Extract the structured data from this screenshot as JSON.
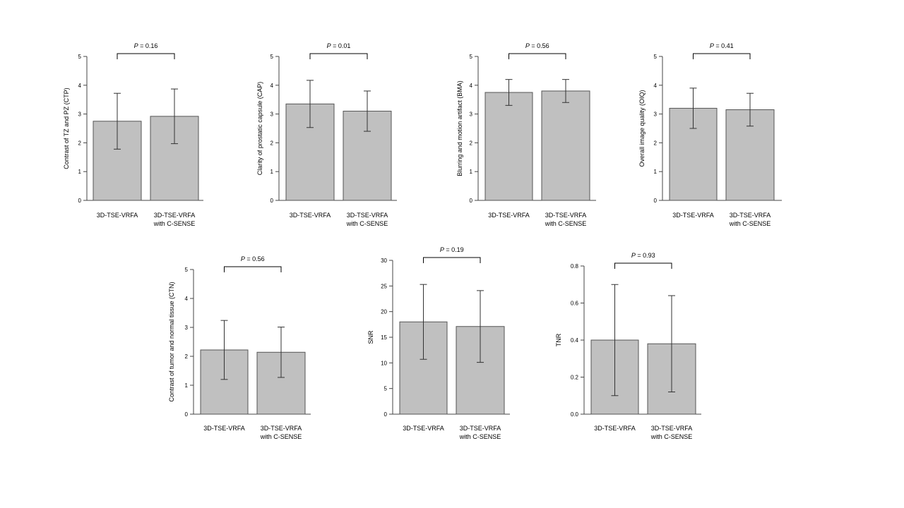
{
  "colors": {
    "bar": "#c0c0c0",
    "bar_stroke": "#555555",
    "axis": "#444444",
    "error": "#333333"
  },
  "chart_data": [
    {
      "type": "bar",
      "categories": [
        "3D-TSE-VRFA",
        "3D-TSE-VRFA|with C-SENSE"
      ],
      "values": [
        2.75,
        2.92
      ],
      "error": [
        0.97,
        0.95
      ],
      "ylabel": "Contrast of TZ and PZ (CTP)",
      "ylim": [
        0,
        5
      ],
      "yticks": [
        0,
        1,
        2,
        3,
        4,
        5
      ],
      "p_label": "P",
      "p_value": "= 0.16"
    },
    {
      "type": "bar",
      "categories": [
        "3D-TSE-VRFA",
        "3D-TSE-VRFA|with C-SENSE"
      ],
      "values": [
        3.35,
        3.1
      ],
      "error": [
        0.82,
        0.7
      ],
      "ylabel": "Clarity of prostatic capsule (CAP)",
      "ylim": [
        0,
        5
      ],
      "yticks": [
        0,
        1,
        2,
        3,
        4,
        5
      ],
      "p_label": "P",
      "p_value": "= 0.01"
    },
    {
      "type": "bar",
      "categories": [
        "3D-TSE-VRFA",
        "3D-TSE-VRFA|with C-SENSE"
      ],
      "values": [
        3.75,
        3.8
      ],
      "error": [
        0.45,
        0.4
      ],
      "ylabel": "Blurring and motion artifact (BMA)",
      "ylim": [
        0,
        5
      ],
      "yticks": [
        0,
        1,
        2,
        3,
        4,
        5
      ],
      "p_label": "P",
      "p_value": "= 0.56"
    },
    {
      "type": "bar",
      "categories": [
        "3D-TSE-VRFA",
        "3D-TSE-VRFA|with C-SENSE"
      ],
      "values": [
        3.2,
        3.15
      ],
      "error": [
        0.7,
        0.57
      ],
      "ylabel": "Overall image quality (OIQ)",
      "ylim": [
        0,
        5
      ],
      "yticks": [
        0,
        1,
        2,
        3,
        4,
        5
      ],
      "p_label": "P",
      "p_value": "= 0.41"
    },
    {
      "type": "bar",
      "categories": [
        "3D-TSE-VRFA",
        "3D-TSE-VRFA|with C-SENSE"
      ],
      "values": [
        2.22,
        2.14
      ],
      "error": [
        1.02,
        0.87
      ],
      "ylabel": "Contrast of tumor and normal tissue (CTN)",
      "ylim": [
        0,
        5
      ],
      "yticks": [
        0,
        1,
        2,
        3,
        4,
        5
      ],
      "p_label": "P",
      "p_value": "= 0.56"
    },
    {
      "type": "bar",
      "categories": [
        "3D-TSE-VRFA",
        "3D-TSE-VRFA|with C-SENSE"
      ],
      "values": [
        18.0,
        17.1
      ],
      "error": [
        7.3,
        7.0
      ],
      "ylabel": "SNR",
      "ylim": [
        0,
        30
      ],
      "yticks": [
        0,
        5,
        10,
        15,
        20,
        25,
        30
      ],
      "p_label": "P",
      "p_value": "= 0.19"
    },
    {
      "type": "bar",
      "categories": [
        "3D-TSE-VRFA",
        "3D-TSE-VRFA|with C-SENSE"
      ],
      "values": [
        0.4,
        0.38
      ],
      "error": [
        0.3,
        0.26
      ],
      "ylabel": "TNR",
      "ylim": [
        0,
        0.8
      ],
      "yticks": [
        "0.0",
        "0.2",
        "0.4",
        "0.6",
        "0.8"
      ],
      "p_label": "P",
      "p_value": "= 0.93"
    }
  ]
}
